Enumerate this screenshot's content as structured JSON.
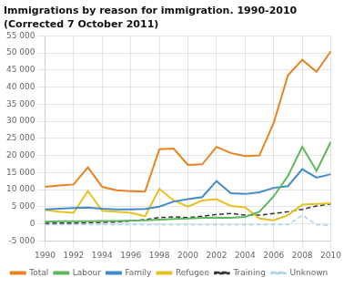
{
  "chart_data": {
    "type": "line",
    "title": "Immigrations by reason for immigration. 1990-2010",
    "subtitle": "(Corrected 7 October 2011)",
    "x": [
      1990,
      1991,
      1992,
      1993,
      1994,
      1995,
      1996,
      1997,
      1998,
      1999,
      2000,
      2001,
      2002,
      2003,
      2004,
      2005,
      2006,
      2007,
      2008,
      2009,
      2010
    ],
    "series": [
      {
        "name": "Total",
        "color": "#e8821e",
        "line_style": "solid",
        "values": [
          10800,
          11200,
          11500,
          16500,
          10800,
          9800,
          9500,
          9400,
          21800,
          22000,
          17200,
          17400,
          22500,
          20700,
          19800,
          20000,
          29500,
          43500,
          48000,
          44500,
          50500
        ]
      },
      {
        "name": "Labour",
        "color": "#5cb85c",
        "line_style": "solid",
        "values": [
          600,
          700,
          700,
          700,
          800,
          800,
          900,
          1000,
          1200,
          1400,
          1500,
          1700,
          1800,
          1700,
          2000,
          3500,
          8000,
          14000,
          22500,
          15500,
          24000
        ]
      },
      {
        "name": "Family",
        "color": "#428bca",
        "line_style": "solid",
        "values": [
          4200,
          4400,
          4600,
          4700,
          4400,
          4200,
          4200,
          4300,
          5000,
          6500,
          7200,
          7800,
          12500,
          8900,
          8700,
          9200,
          10500,
          11000,
          16000,
          13500,
          14500
        ]
      },
      {
        "name": "Refugee",
        "color": "#e8c020",
        "line_style": "solid",
        "values": [
          4000,
          3500,
          3200,
          9600,
          3800,
          3500,
          3200,
          2200,
          10200,
          6800,
          5000,
          6800,
          7200,
          5200,
          4800,
          1500,
          1000,
          2500,
          5600,
          5800,
          6000
        ]
      },
      {
        "name": "Training",
        "color": "#333333",
        "line_style": "dashed",
        "values": [
          100,
          200,
          200,
          300,
          400,
          500,
          800,
          1200,
          1800,
          2000,
          1800,
          2200,
          2700,
          3000,
          2500,
          2500,
          3000,
          3500,
          4200,
          5200,
          5800
        ]
      },
      {
        "name": "Unknown",
        "color": "#aad4ee",
        "line_style": "dashed",
        "values": [
          -300,
          -300,
          -300,
          -300,
          -300,
          -300,
          -300,
          -300,
          -300,
          -300,
          -300,
          -300,
          -300,
          -300,
          -300,
          -300,
          -300,
          -300,
          2500,
          -300,
          -500
        ]
      }
    ],
    "xlim": [
      1990,
      2010
    ],
    "xticks": [
      1990,
      1992,
      1994,
      1996,
      1998,
      2000,
      2002,
      2004,
      2006,
      2008,
      2010
    ],
    "ylim": [
      -5000,
      55000
    ],
    "yticks": [
      {
        "value": -5000,
        "label": "-5 000"
      },
      0,
      {
        "value": 5000,
        "label": "5 000"
      },
      {
        "value": 10000,
        "label": "10 000"
      },
      {
        "value": 15000,
        "label": "15 000"
      },
      {
        "value": 20000,
        "label": "20 000"
      },
      {
        "value": 25000,
        "label": "25 000"
      },
      {
        "value": 30000,
        "label": "30 000"
      },
      {
        "value": 35000,
        "label": "35 000"
      },
      {
        "value": 40000,
        "label": "40 000"
      },
      {
        "value": 45000,
        "label": "45 000"
      },
      {
        "value": 50000,
        "label": "50 000"
      },
      {
        "value": 55000,
        "label": "55 000"
      }
    ],
    "grid": true,
    "legend": "bottom"
  }
}
